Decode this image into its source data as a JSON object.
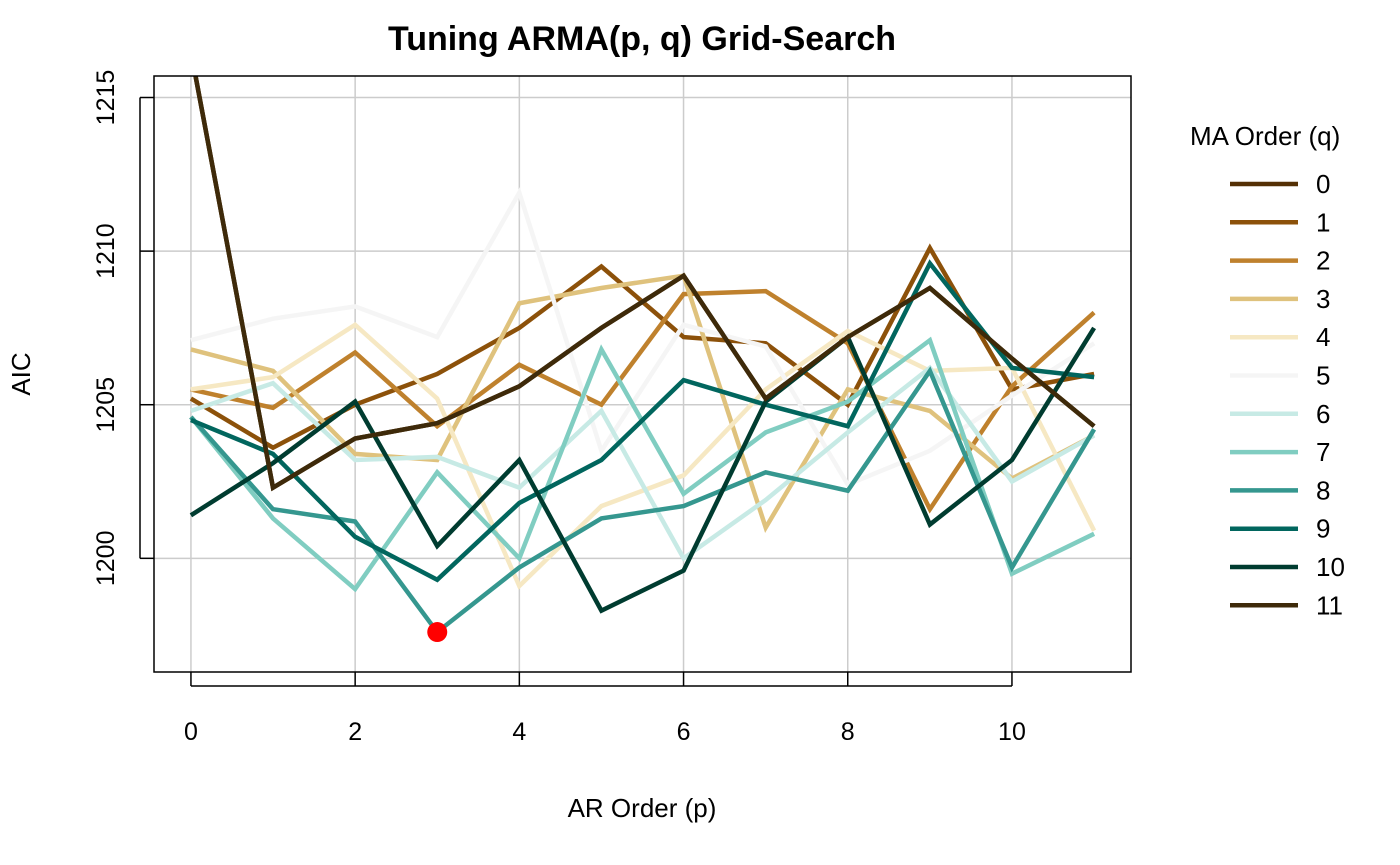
{
  "chart_data": {
    "type": "line",
    "title": "Tuning ARMA(p, q) Grid-Search",
    "xlabel": "AR Order (p)",
    "ylabel": "AIC",
    "xlim": [
      -0.45,
      11.45
    ],
    "ylim": [
      1196.3,
      1215.7
    ],
    "x_ticks": [
      0,
      2,
      4,
      6,
      8,
      10
    ],
    "y_ticks": [
      1200,
      1205,
      1210,
      1215
    ],
    "grid": true,
    "legend": {
      "title": "MA Order (q)",
      "position": "right"
    },
    "x": [
      0,
      1,
      2,
      3,
      4,
      5,
      6,
      7,
      8,
      9,
      10,
      11
    ],
    "series": [
      {
        "name": "0",
        "color": "#543005",
        "values": [
          1216.5,
          1202.3,
          1203.9,
          1204.4,
          1205.6,
          1207.5,
          1209.2,
          1205.2,
          1207.2,
          1208.8,
          1206.5,
          1204.3
        ]
      },
      {
        "name": "1",
        "color": "#8C510A",
        "values": [
          1205.2,
          1203.6,
          1205.0,
          1206.0,
          1207.5,
          1209.5,
          1207.2,
          1207.0,
          1205.0,
          1210.1,
          1205.5,
          1206.0
        ]
      },
      {
        "name": "2",
        "color": "#BF812D",
        "values": [
          1205.5,
          1204.9,
          1206.7,
          1204.3,
          1206.3,
          1205.0,
          1208.6,
          1208.7,
          1207.0,
          1201.6,
          1205.6,
          1208.0
        ]
      },
      {
        "name": "3",
        "color": "#DFC27D",
        "values": [
          1206.8,
          1206.1,
          1203.4,
          1203.2,
          1208.3,
          1208.8,
          1209.2,
          1201.0,
          1205.5,
          1204.8,
          1202.6,
          1204.0
        ]
      },
      {
        "name": "4",
        "color": "#F6E8C3",
        "values": [
          1205.5,
          1205.9,
          1207.6,
          1205.2,
          1199.1,
          1201.7,
          1202.7,
          1205.5,
          1207.4,
          1206.1,
          1206.2,
          1200.9
        ]
      },
      {
        "name": "5",
        "color": "#F5F5F5",
        "values": [
          1207.1,
          1207.8,
          1208.2,
          1207.2,
          1211.9,
          1203.5,
          1207.6,
          1206.9,
          1202.4,
          1203.5,
          1205.3,
          1207.0
        ]
      },
      {
        "name": "6",
        "color": "#C7EAE5",
        "values": [
          1204.8,
          1205.7,
          1203.2,
          1203.3,
          1202.3,
          1204.8,
          1200.0,
          1201.9,
          1204.1,
          1206.2,
          1202.5,
          1204.0
        ]
      },
      {
        "name": "7",
        "color": "#80CDC1",
        "values": [
          1204.6,
          1201.3,
          1199.0,
          1202.8,
          1200.0,
          1206.8,
          1202.1,
          1204.1,
          1205.1,
          1207.1,
          1199.5,
          1200.8
        ]
      },
      {
        "name": "8",
        "color": "#35978F",
        "values": [
          1204.6,
          1201.6,
          1201.2,
          1197.6,
          1199.7,
          1201.3,
          1201.7,
          1202.8,
          1202.2,
          1206.1,
          1199.7,
          1204.2
        ]
      },
      {
        "name": "9",
        "color": "#01665E",
        "values": [
          1204.5,
          1203.4,
          1200.7,
          1199.3,
          1201.8,
          1203.2,
          1205.8,
          1205.0,
          1204.3,
          1209.6,
          1206.2,
          1205.9
        ]
      },
      {
        "name": "10",
        "color": "#003C30",
        "values": [
          1201.4,
          1203.1,
          1205.1,
          1200.4,
          1203.2,
          1198.3,
          1199.6,
          1205.1,
          1207.2,
          1201.1,
          1203.2,
          1207.5
        ]
      },
      {
        "name": "11",
        "color": "#3E2A0A",
        "values": [
          1216.5,
          1202.3,
          1203.9,
          1204.4,
          1205.6,
          1207.5,
          1209.2,
          1205.2,
          1207.2,
          1208.8,
          1206.5,
          1204.3
        ]
      }
    ],
    "highlight": {
      "x": 3,
      "y": 1197.6,
      "color": "#FF0000"
    }
  }
}
